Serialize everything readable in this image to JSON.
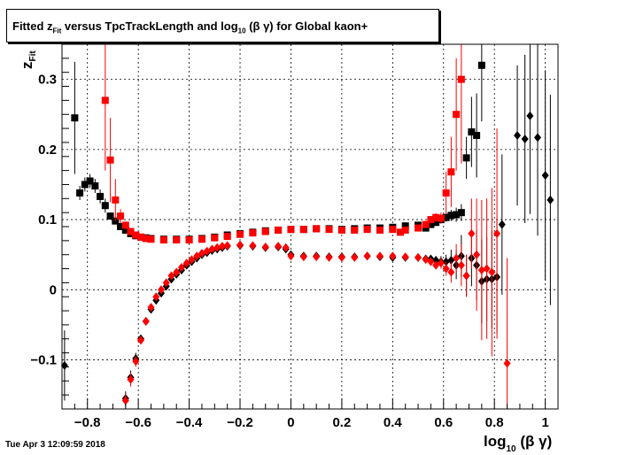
{
  "title": {
    "pre": "Fitted  z",
    "sub1": "Fit",
    "mid": "  versus TpcTrackLength and log",
    "sub2": "10",
    "post": " (β γ) for Global kaon+"
  },
  "footer_date": "Tue Apr  3 12:09:59 2018",
  "chart_data": {
    "type": "scatter",
    "title": "Fitted  zFit  versus TpcTrackLength and log10 (β γ) for Global kaon+",
    "xlabel": "log10 (β γ)",
    "ylabel": "zFit",
    "xlim": [
      -0.9,
      1.05
    ],
    "ylim": [
      -0.17,
      0.35
    ],
    "grid": true,
    "x_ticks": [
      {
        "v": -0.8,
        "label": "−0.8"
      },
      {
        "v": -0.6,
        "label": "−0.6"
      },
      {
        "v": -0.4,
        "label": "−0.4"
      },
      {
        "v": -0.2,
        "label": "−0.2"
      },
      {
        "v": 0,
        "label": "0"
      },
      {
        "v": 0.2,
        "label": "0.2"
      },
      {
        "v": 0.4,
        "label": "0.4"
      },
      {
        "v": 0.6,
        "label": "0.6"
      },
      {
        "v": 0.8,
        "label": "0.8"
      },
      {
        "v": 1.0,
        "label": "1"
      }
    ],
    "y_ticks": [
      {
        "v": -0.1,
        "label": "−0.1"
      },
      {
        "v": 0,
        "label": "0"
      },
      {
        "v": 0.1,
        "label": "0.1"
      },
      {
        "v": 0.2,
        "label": "0.2"
      },
      {
        "v": 0.3,
        "label": "0.3"
      }
    ],
    "series": [
      {
        "marker": "square",
        "color": "#000000",
        "points": [
          [
            -0.85,
            0.245,
            0.08
          ],
          [
            -0.83,
            0.138,
            0.01
          ],
          [
            -0.81,
            0.15,
            0.01
          ],
          [
            -0.79,
            0.155,
            0.01
          ],
          [
            -0.77,
            0.148,
            0.01
          ],
          [
            -0.75,
            0.133,
            0.01
          ],
          [
            -0.73,
            0.12,
            0.01
          ],
          [
            -0.71,
            0.105,
            0.005
          ],
          [
            -0.69,
            0.098,
            0.004
          ],
          [
            -0.67,
            0.09,
            0.004
          ],
          [
            -0.65,
            0.085,
            0.003
          ],
          [
            -0.63,
            0.08,
            0.003
          ],
          [
            -0.61,
            0.077,
            0.003
          ],
          [
            -0.59,
            0.075,
            0.003
          ],
          [
            -0.57,
            0.074,
            0.003
          ],
          [
            -0.55,
            0.073,
            0.003
          ],
          [
            -0.5,
            0.072,
            0.002
          ],
          [
            -0.45,
            0.072,
            0.002
          ],
          [
            -0.4,
            0.072,
            0.002
          ],
          [
            -0.35,
            0.073,
            0.002
          ],
          [
            -0.3,
            0.075,
            0.002
          ],
          [
            -0.25,
            0.078,
            0.002
          ],
          [
            -0.2,
            0.08,
            0.002
          ],
          [
            -0.15,
            0.082,
            0.002
          ],
          [
            -0.1,
            0.084,
            0.002
          ],
          [
            -0.05,
            0.085,
            0.002
          ],
          [
            0.0,
            0.086,
            0.002
          ],
          [
            0.05,
            0.086,
            0.002
          ],
          [
            0.1,
            0.087,
            0.002
          ],
          [
            0.15,
            0.087,
            0.002
          ],
          [
            0.2,
            0.086,
            0.002
          ],
          [
            0.25,
            0.087,
            0.002
          ],
          [
            0.3,
            0.088,
            0.002
          ],
          [
            0.35,
            0.088,
            0.002
          ],
          [
            0.4,
            0.089,
            0.002
          ],
          [
            0.45,
            0.091,
            0.002
          ],
          [
            0.5,
            0.092,
            0.003
          ],
          [
            0.53,
            0.088,
            0.003
          ],
          [
            0.55,
            0.093,
            0.003
          ],
          [
            0.57,
            0.096,
            0.004
          ],
          [
            0.59,
            0.1,
            0.005
          ],
          [
            0.61,
            0.103,
            0.006
          ],
          [
            0.63,
            0.106,
            0.008
          ],
          [
            0.65,
            0.107,
            0.01
          ],
          [
            0.67,
            0.11,
            0.012
          ],
          [
            0.69,
            0.188,
            0.03
          ],
          [
            0.71,
            0.225,
            0.05
          ],
          [
            0.73,
            0.22,
            0.06
          ],
          [
            0.75,
            0.32,
            0.08
          ]
        ]
      },
      {
        "marker": "square",
        "color": "#ff0000",
        "points": [
          [
            -0.73,
            0.27,
            0.1
          ],
          [
            -0.71,
            0.185,
            0.06
          ],
          [
            -0.69,
            0.128,
            0.03
          ],
          [
            -0.67,
            0.105,
            0.01
          ],
          [
            -0.65,
            0.092,
            0.005
          ],
          [
            -0.63,
            0.083,
            0.004
          ],
          [
            -0.61,
            0.078,
            0.003
          ],
          [
            -0.59,
            0.075,
            0.003
          ],
          [
            -0.57,
            0.073,
            0.003
          ],
          [
            -0.55,
            0.072,
            0.002
          ],
          [
            -0.5,
            0.071,
            0.002
          ],
          [
            -0.45,
            0.071,
            0.002
          ],
          [
            -0.4,
            0.071,
            0.002
          ],
          [
            -0.35,
            0.072,
            0.002
          ],
          [
            -0.3,
            0.074,
            0.002
          ],
          [
            -0.25,
            0.076,
            0.002
          ],
          [
            -0.2,
            0.079,
            0.002
          ],
          [
            -0.15,
            0.081,
            0.002
          ],
          [
            -0.1,
            0.083,
            0.002
          ],
          [
            -0.05,
            0.085,
            0.002
          ],
          [
            0.0,
            0.086,
            0.002
          ],
          [
            0.05,
            0.086,
            0.002
          ],
          [
            0.1,
            0.087,
            0.002
          ],
          [
            0.15,
            0.086,
            0.002
          ],
          [
            0.2,
            0.085,
            0.002
          ],
          [
            0.25,
            0.085,
            0.002
          ],
          [
            0.3,
            0.086,
            0.002
          ],
          [
            0.35,
            0.085,
            0.002
          ],
          [
            0.4,
            0.086,
            0.002
          ],
          [
            0.43,
            0.082,
            0.002
          ],
          [
            0.45,
            0.085,
            0.002
          ],
          [
            0.5,
            0.088,
            0.003
          ],
          [
            0.53,
            0.093,
            0.004
          ],
          [
            0.55,
            0.1,
            0.005
          ],
          [
            0.57,
            0.103,
            0.006
          ],
          [
            0.59,
            0.102,
            0.008
          ],
          [
            0.61,
            0.138,
            0.03
          ],
          [
            0.63,
            0.168,
            0.05
          ],
          [
            0.65,
            0.25,
            0.08
          ],
          [
            0.67,
            0.3,
            0.12
          ]
        ]
      },
      {
        "marker": "diamond",
        "color": "#000000",
        "points": [
          [
            -0.89,
            -0.108,
            0.05
          ],
          [
            -0.65,
            -0.155,
            0.01
          ],
          [
            -0.63,
            -0.125,
            0.01
          ],
          [
            -0.61,
            -0.098,
            0.008
          ],
          [
            -0.59,
            -0.07,
            0.006
          ],
          [
            -0.57,
            -0.045,
            0.005
          ],
          [
            -0.55,
            -0.028,
            0.004
          ],
          [
            -0.53,
            -0.015,
            0.003
          ],
          [
            -0.51,
            -0.005,
            0.003
          ],
          [
            -0.49,
            0.005,
            0.003
          ],
          [
            -0.47,
            0.015,
            0.003
          ],
          [
            -0.45,
            0.022,
            0.003
          ],
          [
            -0.43,
            0.028,
            0.003
          ],
          [
            -0.41,
            0.035,
            0.003
          ],
          [
            -0.39,
            0.04,
            0.003
          ],
          [
            -0.37,
            0.045,
            0.003
          ],
          [
            -0.35,
            0.05,
            0.003
          ],
          [
            -0.33,
            0.053,
            0.003
          ],
          [
            -0.31,
            0.056,
            0.003
          ],
          [
            -0.29,
            0.058,
            0.003
          ],
          [
            -0.27,
            0.06,
            0.003
          ],
          [
            -0.25,
            0.062,
            0.003
          ],
          [
            -0.2,
            0.063,
            0.003
          ],
          [
            -0.15,
            0.062,
            0.003
          ],
          [
            -0.1,
            0.06,
            0.003
          ],
          [
            -0.05,
            0.061,
            0.003
          ],
          [
            -0.02,
            0.058,
            0.003
          ],
          [
            0.0,
            0.05,
            0.003
          ],
          [
            0.05,
            0.048,
            0.003
          ],
          [
            0.1,
            0.048,
            0.003
          ],
          [
            0.15,
            0.047,
            0.003
          ],
          [
            0.2,
            0.047,
            0.003
          ],
          [
            0.25,
            0.047,
            0.003
          ],
          [
            0.3,
            0.048,
            0.003
          ],
          [
            0.35,
            0.047,
            0.003
          ],
          [
            0.4,
            0.046,
            0.003
          ],
          [
            0.45,
            0.046,
            0.003
          ],
          [
            0.5,
            0.046,
            0.003
          ],
          [
            0.53,
            0.044,
            0.004
          ],
          [
            0.55,
            0.044,
            0.005
          ],
          [
            0.57,
            0.042,
            0.006
          ],
          [
            0.59,
            0.04,
            0.008
          ],
          [
            0.61,
            0.04,
            0.01
          ],
          [
            0.63,
            0.042,
            0.015
          ],
          [
            0.65,
            0.035,
            0.02
          ],
          [
            0.67,
            0.048,
            0.03
          ],
          [
            0.69,
            0.02,
            0.03
          ],
          [
            0.71,
            0.045,
            0.04
          ],
          [
            0.73,
            0.035,
            0.05
          ],
          [
            0.75,
            0.012,
            0.06
          ],
          [
            0.77,
            0.015,
            0.06
          ],
          [
            0.79,
            0.015,
            0.07
          ],
          [
            0.81,
            0.018,
            0.08
          ],
          [
            0.83,
            0.093,
            0.1
          ],
          [
            0.89,
            0.22,
            0.1
          ],
          [
            0.92,
            0.215,
            0.12
          ],
          [
            0.94,
            0.248,
            0.14
          ],
          [
            0.97,
            0.217,
            0.14
          ],
          [
            1.0,
            0.163,
            0.15
          ],
          [
            1.02,
            0.128,
            0.15
          ]
        ]
      },
      {
        "marker": "diamond",
        "color": "#ff0000",
        "points": [
          [
            -0.65,
            -0.158,
            0.01
          ],
          [
            -0.63,
            -0.128,
            0.01
          ],
          [
            -0.61,
            -0.102,
            0.008
          ],
          [
            -0.59,
            -0.072,
            0.006
          ],
          [
            -0.57,
            -0.045,
            0.005
          ],
          [
            -0.55,
            -0.025,
            0.004
          ],
          [
            -0.53,
            -0.01,
            0.003
          ],
          [
            -0.51,
            0.0,
            0.003
          ],
          [
            -0.49,
            0.01,
            0.003
          ],
          [
            -0.47,
            0.02,
            0.003
          ],
          [
            -0.45,
            0.025,
            0.003
          ],
          [
            -0.43,
            0.032,
            0.003
          ],
          [
            -0.41,
            0.038,
            0.003
          ],
          [
            -0.39,
            0.043,
            0.003
          ],
          [
            -0.37,
            0.048,
            0.003
          ],
          [
            -0.35,
            0.052,
            0.003
          ],
          [
            -0.33,
            0.055,
            0.003
          ],
          [
            -0.31,
            0.058,
            0.003
          ],
          [
            -0.29,
            0.06,
            0.003
          ],
          [
            -0.27,
            0.062,
            0.003
          ],
          [
            -0.25,
            0.063,
            0.003
          ],
          [
            -0.2,
            0.064,
            0.003
          ],
          [
            -0.15,
            0.063,
            0.003
          ],
          [
            -0.1,
            0.061,
            0.003
          ],
          [
            -0.05,
            0.062,
            0.003
          ],
          [
            -0.02,
            0.06,
            0.003
          ],
          [
            0.0,
            0.048,
            0.003
          ],
          [
            0.05,
            0.047,
            0.003
          ],
          [
            0.1,
            0.047,
            0.003
          ],
          [
            0.15,
            0.046,
            0.003
          ],
          [
            0.2,
            0.046,
            0.003
          ],
          [
            0.25,
            0.046,
            0.003
          ],
          [
            0.3,
            0.048,
            0.003
          ],
          [
            0.35,
            0.048,
            0.003
          ],
          [
            0.4,
            0.048,
            0.003
          ],
          [
            0.45,
            0.047,
            0.003
          ],
          [
            0.5,
            0.046,
            0.003
          ],
          [
            0.53,
            0.043,
            0.004
          ],
          [
            0.55,
            0.04,
            0.005
          ],
          [
            0.57,
            0.035,
            0.006
          ],
          [
            0.59,
            0.038,
            0.008
          ],
          [
            0.61,
            0.03,
            0.01
          ],
          [
            0.63,
            0.025,
            0.015
          ],
          [
            0.65,
            0.045,
            0.02
          ],
          [
            0.67,
            0.035,
            0.03
          ],
          [
            0.69,
            0.02,
            0.03
          ],
          [
            0.71,
            0.08,
            0.05
          ],
          [
            0.73,
            0.05,
            0.08
          ],
          [
            0.75,
            0.028,
            0.1
          ],
          [
            0.77,
            0.03,
            0.1
          ],
          [
            0.79,
            0.025,
            0.12
          ],
          [
            0.81,
            0.08,
            0.15
          ],
          [
            0.85,
            -0.105,
            0.15
          ]
        ]
      }
    ]
  }
}
